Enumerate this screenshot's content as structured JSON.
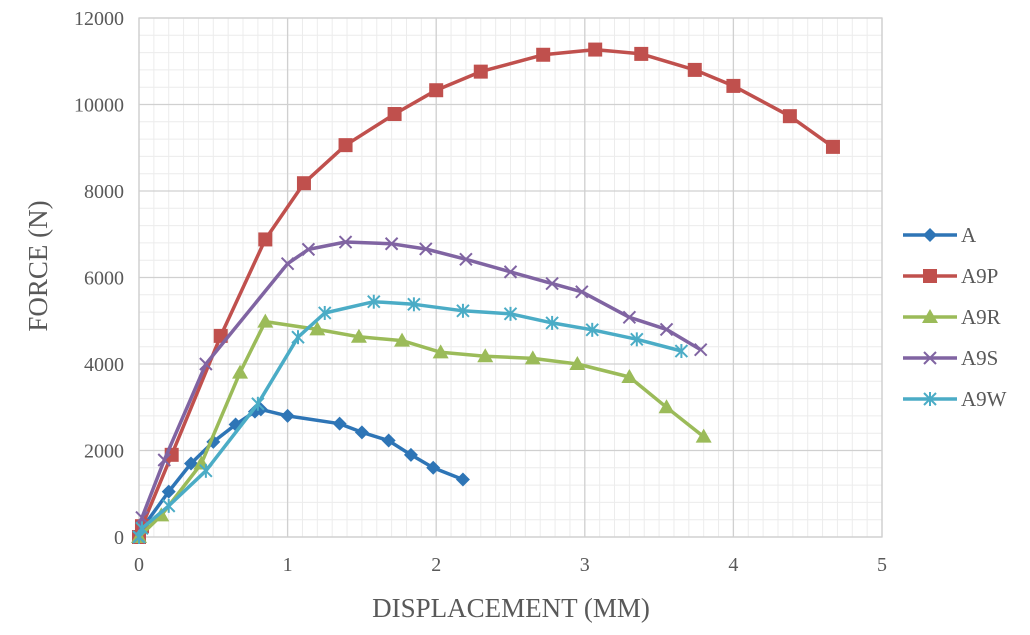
{
  "chart_data": {
    "type": "line",
    "title": "",
    "xlabel": "DISPLACEMENT (MM)",
    "ylabel": "FORCE (N)",
    "xlim": [
      0,
      5
    ],
    "ylim": [
      0,
      12000
    ],
    "xticks": [
      0,
      1,
      2,
      3,
      4,
      5
    ],
    "yticks": [
      0,
      2000,
      4000,
      6000,
      8000,
      10000,
      12000
    ],
    "x_minor_step": 0.1,
    "y_minor_step": 400,
    "grid": true,
    "legend_position": "right",
    "series": [
      {
        "name": "A",
        "color": "#2E75B6",
        "marker": "diamond",
        "points": [
          [
            0,
            0
          ],
          [
            0.02,
            200
          ],
          [
            0.2,
            1050
          ],
          [
            0.35,
            1700
          ],
          [
            0.5,
            2200
          ],
          [
            0.65,
            2600
          ],
          [
            0.78,
            2900
          ],
          [
            0.82,
            2950
          ],
          [
            1.0,
            2800
          ],
          [
            1.35,
            2620
          ],
          [
            1.5,
            2420
          ],
          [
            1.68,
            2230
          ],
          [
            1.83,
            1900
          ],
          [
            1.98,
            1600
          ],
          [
            2.18,
            1330
          ]
        ]
      },
      {
        "name": "A9P",
        "color": "#C0504D",
        "marker": "square",
        "points": [
          [
            0,
            0
          ],
          [
            0.02,
            250
          ],
          [
            0.22,
            1900
          ],
          [
            0.55,
            4650
          ],
          [
            0.85,
            6880
          ],
          [
            1.11,
            8180
          ],
          [
            1.39,
            9060
          ],
          [
            1.72,
            9780
          ],
          [
            2.0,
            10330
          ],
          [
            2.3,
            10760
          ],
          [
            2.72,
            11150
          ],
          [
            3.07,
            11270
          ],
          [
            3.38,
            11170
          ],
          [
            3.74,
            10800
          ],
          [
            4.0,
            10430
          ],
          [
            4.38,
            9730
          ],
          [
            4.67,
            9020
          ]
        ]
      },
      {
        "name": "A9R",
        "color": "#9BBB59",
        "marker": "triangle",
        "points": [
          [
            0,
            0
          ],
          [
            0.15,
            500
          ],
          [
            0.42,
            1700
          ],
          [
            0.68,
            3800
          ],
          [
            0.85,
            4980
          ],
          [
            1.2,
            4800
          ],
          [
            1.48,
            4630
          ],
          [
            1.77,
            4540
          ],
          [
            2.03,
            4270
          ],
          [
            2.33,
            4180
          ],
          [
            2.65,
            4130
          ],
          [
            2.95,
            4000
          ],
          [
            3.3,
            3700
          ],
          [
            3.55,
            3000
          ],
          [
            3.8,
            2320
          ]
        ]
      },
      {
        "name": "A9S",
        "color": "#8064A2",
        "marker": "x",
        "points": [
          [
            0,
            0
          ],
          [
            0.02,
            450
          ],
          [
            0.17,
            1780
          ],
          [
            0.45,
            4000
          ],
          [
            1.0,
            6320
          ],
          [
            1.14,
            6650
          ],
          [
            1.39,
            6820
          ],
          [
            1.7,
            6780
          ],
          [
            1.93,
            6660
          ],
          [
            2.2,
            6420
          ],
          [
            2.5,
            6130
          ],
          [
            2.78,
            5860
          ],
          [
            2.98,
            5670
          ],
          [
            3.3,
            5080
          ],
          [
            3.55,
            4800
          ],
          [
            3.78,
            4330
          ]
        ]
      },
      {
        "name": "A9W",
        "color": "#4BACC6",
        "marker": "asterisk",
        "points": [
          [
            0,
            0
          ],
          [
            0.02,
            200
          ],
          [
            0.2,
            720
          ],
          [
            0.45,
            1530
          ],
          [
            0.8,
            3080
          ],
          [
            1.07,
            4620
          ],
          [
            1.25,
            5180
          ],
          [
            1.58,
            5440
          ],
          [
            1.85,
            5380
          ],
          [
            2.18,
            5230
          ],
          [
            2.5,
            5160
          ],
          [
            2.78,
            4950
          ],
          [
            3.05,
            4790
          ],
          [
            3.35,
            4570
          ],
          [
            3.65,
            4300
          ]
        ]
      }
    ]
  }
}
